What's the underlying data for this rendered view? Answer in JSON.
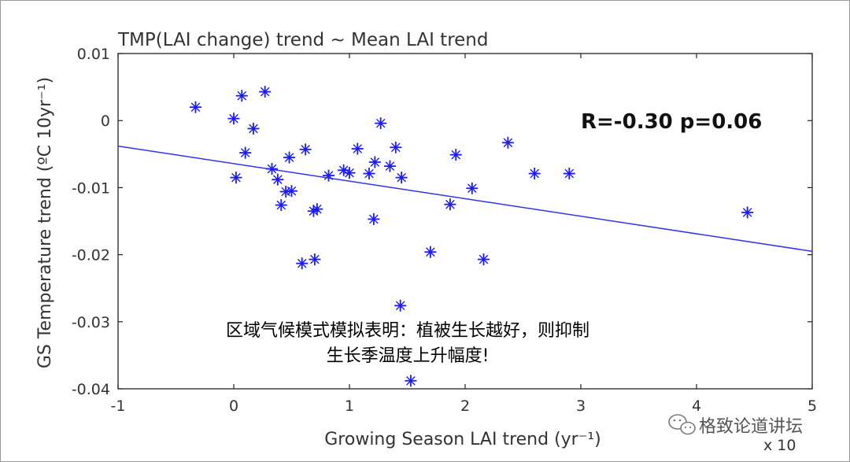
{
  "chart_data": {
    "type": "scatter",
    "title": "TMP(LAI change) trend ~ Mean LAI trend",
    "xlabel": "Growing Season LAI trend (yr⁻¹)",
    "ylabel": "GS Temperature trend (ºC 10yr⁻¹)",
    "x_multiplier_label": "x 10",
    "xlim": [
      -1,
      5
    ],
    "ylim": [
      -0.04,
      0.01
    ],
    "x_ticks": [
      -1,
      0,
      1,
      2,
      3,
      4,
      5
    ],
    "x_tick_labels": [
      "-1",
      "0",
      "1",
      "2",
      "3",
      "4",
      "5"
    ],
    "y_ticks": [
      -0.04,
      -0.03,
      -0.02,
      -0.01,
      0,
      0.01
    ],
    "y_tick_labels": [
      "-0.04",
      "-0.03",
      "-0.02",
      "-0.01",
      "0",
      "0.01"
    ],
    "annotation": "R=-0.30 p=0.06",
    "fit_line": {
      "x": [
        -1,
        5
      ],
      "y": [
        -0.0038,
        -0.0195
      ]
    },
    "series": [
      {
        "name": "points",
        "marker": "*",
        "x": [
          -0.33,
          0.07,
          0.27,
          0.0,
          0.17,
          0.1,
          0.02,
          0.33,
          0.38,
          0.41,
          0.45,
          0.48,
          0.5,
          0.62,
          0.69,
          0.72,
          0.59,
          0.7,
          0.82,
          0.95,
          1.0,
          1.07,
          1.17,
          1.22,
          1.27,
          1.35,
          1.4,
          1.45,
          1.21,
          1.44,
          1.53,
          1.7,
          1.87,
          1.92,
          2.06,
          2.16,
          2.37,
          2.6,
          2.9,
          4.44
        ],
        "y": [
          0.002,
          0.0037,
          0.0043,
          0.0003,
          -0.0012,
          -0.0048,
          -0.0085,
          -0.0072,
          -0.0088,
          -0.0126,
          -0.0106,
          -0.0055,
          -0.0105,
          -0.0043,
          -0.0135,
          -0.0132,
          -0.0213,
          -0.0207,
          -0.0082,
          -0.0074,
          -0.0078,
          -0.0042,
          -0.0079,
          -0.0062,
          -0.0004,
          -0.0068,
          -0.004,
          -0.0085,
          -0.0147,
          -0.0276,
          -0.0388,
          -0.0196,
          -0.0125,
          -0.0051,
          -0.0101,
          -0.0207,
          -0.0033,
          -0.0079,
          -0.0079,
          -0.0137
        ]
      }
    ]
  },
  "overlay_text": {
    "line1": "区域气候模式模拟表明：植被生长越好，则抑制",
    "line2": "生长季温度上升幅度!"
  },
  "watermark": {
    "text": "格致论道讲坛",
    "icon": "wechat-icon"
  },
  "colors": {
    "marker": "#1a1aff",
    "fit_line": "#3333ee",
    "axis": "#222222",
    "annotation": "#111111"
  }
}
